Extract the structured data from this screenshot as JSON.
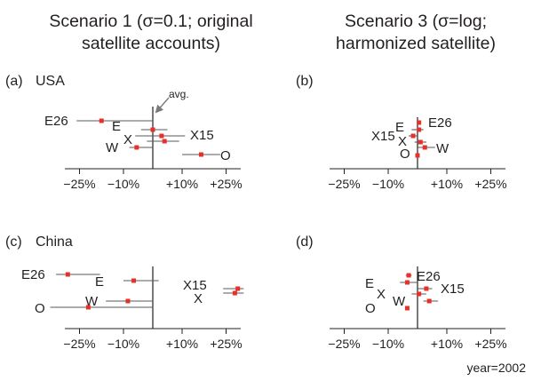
{
  "figure": {
    "columns": [
      {
        "line1": "Scenario 1 (σ=0.1; original",
        "line2": "satellite accounts)"
      },
      {
        "line1": "Scenario 3 (σ=log;",
        "line2": "harmonized satellite)"
      }
    ],
    "year_label": "year=2002",
    "avg_label": "avg."
  },
  "chart_data": [
    {
      "type": "scatter",
      "panel": "(a)",
      "region": "USA",
      "xlim": [
        -30,
        30
      ],
      "xticks": [
        "−25%",
        "−10%",
        "+10%",
        "+25%"
      ],
      "xtick_values": [
        -25,
        -10,
        10,
        25
      ],
      "reference_line_x": 0,
      "points": [
        {
          "label": "E26",
          "x": -17.5,
          "lo": -26,
          "hi": 0
        },
        {
          "label": "E",
          "x": 0,
          "lo": -4,
          "hi": 5
        },
        {
          "label": "X15",
          "x": 3,
          "lo": -6,
          "hi": 11
        },
        {
          "label": "X",
          "x": 4,
          "lo": -2,
          "hi": 9
        },
        {
          "label": "W",
          "x": -5.5,
          "lo": -8,
          "hi": 0
        },
        {
          "label": "O",
          "x": 16.5,
          "lo": 10,
          "hi": 23
        }
      ]
    },
    {
      "type": "scatter",
      "panel": "(b)",
      "region": "",
      "xlim": [
        -30,
        30
      ],
      "xticks": [
        "−25%",
        "−10%",
        "+10%",
        "+25%"
      ],
      "xtick_values": [
        -25,
        -10,
        10,
        25
      ],
      "reference_line_x": 0,
      "points": [
        {
          "label": "E26",
          "x": 0.5,
          "lo": 0,
          "hi": 1
        },
        {
          "label": "E",
          "x": 0.5,
          "lo": -2,
          "hi": 2
        },
        {
          "label": "X15",
          "x": -1.5,
          "lo": -3,
          "hi": 0
        },
        {
          "label": "X",
          "x": 1,
          "lo": -1,
          "hi": 3
        },
        {
          "label": "W",
          "x": 2.5,
          "lo": 0,
          "hi": 6
        },
        {
          "label": "O",
          "x": 0,
          "lo": 0,
          "hi": 0
        }
      ]
    },
    {
      "type": "scatter",
      "panel": "(c)",
      "region": "China",
      "xlim": [
        -30,
        30
      ],
      "xticks": [
        "−25%",
        "−10%",
        "+10%",
        "+25%"
      ],
      "xtick_values": [
        -25,
        -10,
        10,
        25
      ],
      "reference_line_x": 0,
      "points": [
        {
          "label": "E26",
          "x": -29,
          "lo": -33,
          "hi": -18
        },
        {
          "label": "E",
          "x": -6.5,
          "lo": -10,
          "hi": 2
        },
        {
          "label": "X15",
          "x": 29,
          "lo": 24,
          "hi": 31
        },
        {
          "label": "X",
          "x": 28,
          "lo": 24,
          "hi": 31
        },
        {
          "label": "W",
          "x": -8.5,
          "lo": -16,
          "hi": 0
        },
        {
          "label": "O",
          "x": -22,
          "lo": -35,
          "hi": 0
        }
      ]
    },
    {
      "type": "scatter",
      "panel": "(d)",
      "region": "",
      "xlim": [
        -30,
        30
      ],
      "xticks": [
        "−25%",
        "−10%",
        "+10%",
        "+25%"
      ],
      "xtick_values": [
        -25,
        -10,
        10,
        25
      ],
      "reference_line_x": 0,
      "points": [
        {
          "label": "E26",
          "x": -3,
          "lo": -4,
          "hi": -2
        },
        {
          "label": "E",
          "x": -3.5,
          "lo": -6,
          "hi": 0
        },
        {
          "label": "X15",
          "x": 3,
          "lo": 0,
          "hi": 5
        },
        {
          "label": "X",
          "x": 0.5,
          "lo": -2,
          "hi": 3
        },
        {
          "label": "W",
          "x": 4,
          "lo": 2,
          "hi": 7
        },
        {
          "label": "O",
          "x": -3.5,
          "lo": -3.5,
          "hi": -3.5
        }
      ]
    }
  ]
}
